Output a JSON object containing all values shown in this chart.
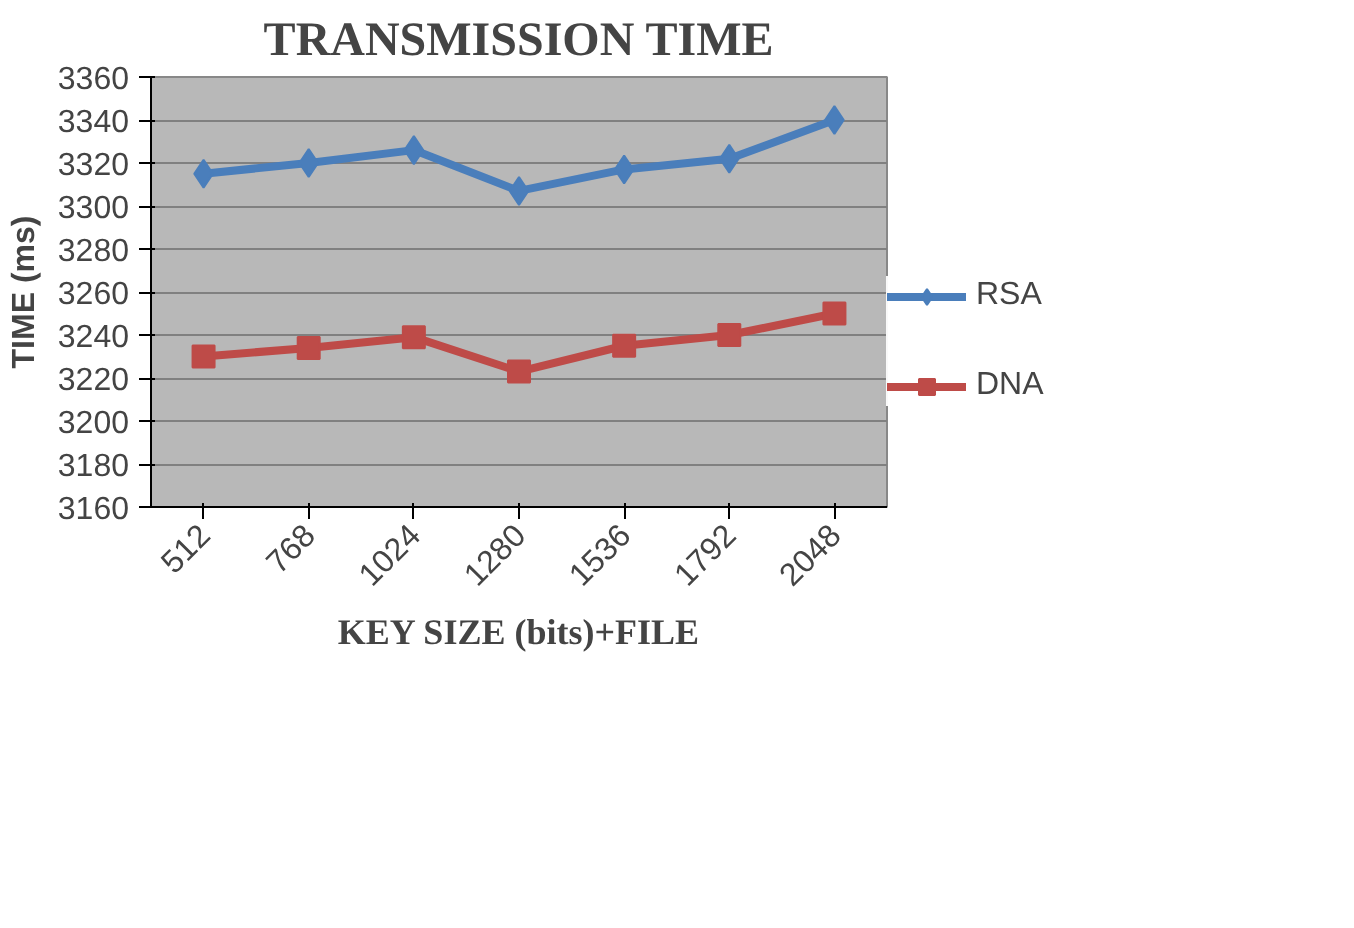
{
  "chart_data": {
    "type": "line",
    "title": "TRANSMISSION TIME",
    "xlabel": "KEY SIZE (bits)+FILE",
    "ylabel": "TIME (ms)",
    "categories": [
      "512",
      "768",
      "1024",
      "1280",
      "1536",
      "1792",
      "2048"
    ],
    "series": [
      {
        "name": "RSA",
        "color": "#4a7ebb",
        "marker": "diamond",
        "values": [
          3315,
          3320,
          3326,
          3307,
          3317,
          3322,
          3340
        ]
      },
      {
        "name": "DNA",
        "color": "#be4b48",
        "marker": "square",
        "values": [
          3230,
          3234,
          3239,
          3223,
          3235,
          3240,
          3250
        ]
      }
    ],
    "ylim": [
      3160,
      3360
    ],
    "yticks": [
      3160,
      3180,
      3200,
      3220,
      3240,
      3260,
      3280,
      3300,
      3320,
      3340,
      3360
    ],
    "grid": "y",
    "legend": "right",
    "line_style": "solid"
  }
}
